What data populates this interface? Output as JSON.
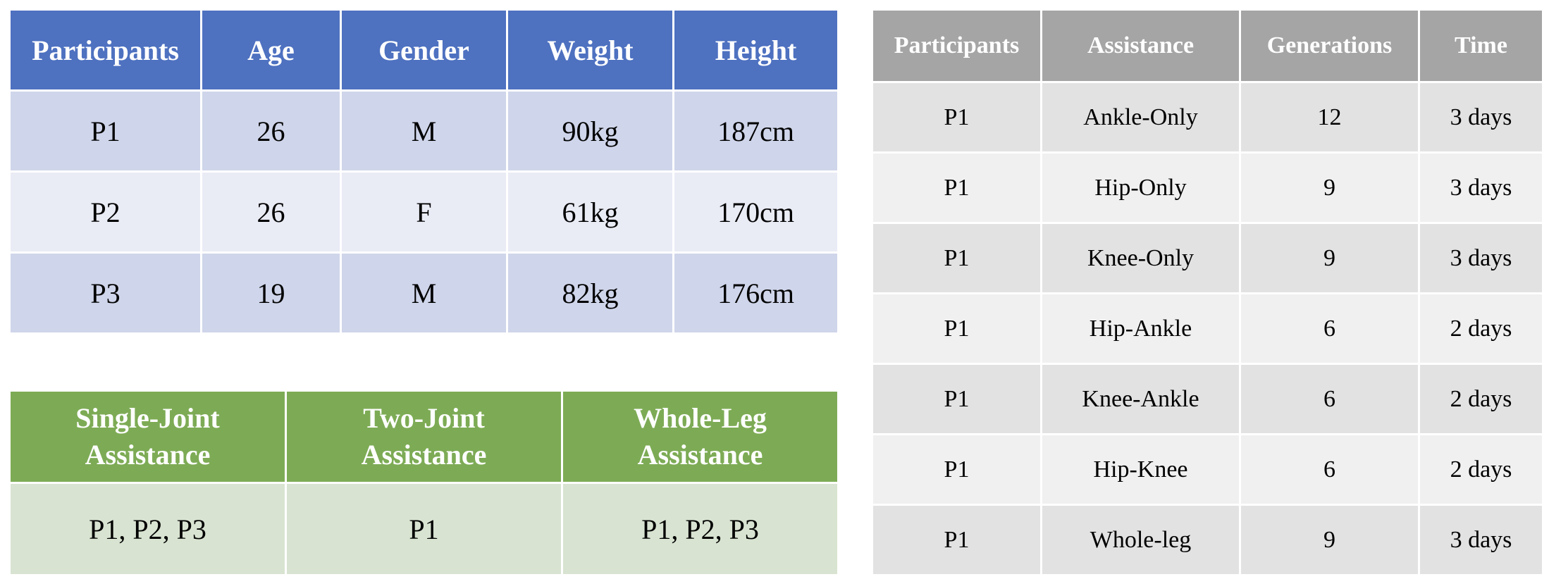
{
  "participants_table": {
    "headers": [
      "Participants",
      "Age",
      "Gender",
      "Weight",
      "Height"
    ],
    "rows": [
      [
        "P1",
        "26",
        "M",
        "90kg",
        "187cm"
      ],
      [
        "P2",
        "26",
        "F",
        "61kg",
        "170cm"
      ],
      [
        "P3",
        "19",
        "M",
        "82kg",
        "176cm"
      ]
    ]
  },
  "coverage_table": {
    "headers": [
      [
        "Single-Joint",
        "Assistance"
      ],
      [
        "Two-Joint",
        "Assistance"
      ],
      [
        "Whole-Leg",
        "Assistance"
      ]
    ],
    "row": [
      "P1, P2, P3",
      "P1",
      "P1, P2, P3"
    ]
  },
  "generations_table": {
    "headers": [
      "Participants",
      "Assistance",
      "Generations",
      "Time"
    ],
    "rows": [
      [
        "P1",
        "Ankle-Only",
        "12",
        "3 days"
      ],
      [
        "P1",
        "Hip-Only",
        "9",
        "3 days"
      ],
      [
        "P1",
        "Knee-Only",
        "9",
        "3 days"
      ],
      [
        "P1",
        "Hip-Ankle",
        "6",
        "2 days"
      ],
      [
        "P1",
        "Knee-Ankle",
        "6",
        "2 days"
      ],
      [
        "P1",
        "Hip-Knee",
        "6",
        "2 days"
      ],
      [
        "P1",
        "Whole-leg",
        "9",
        "3 days"
      ]
    ]
  },
  "colors": {
    "blue_header": "#4e71c0",
    "blue_row_dark": "#cfd5ea",
    "blue_row_light": "#e9ebf5",
    "green_header": "#7dab55",
    "green_row": "#d8e3d1",
    "gray_header": "#a5a5a5",
    "gray_row_dark": "#e2e2e2",
    "gray_row_light": "#f0f0f0"
  }
}
